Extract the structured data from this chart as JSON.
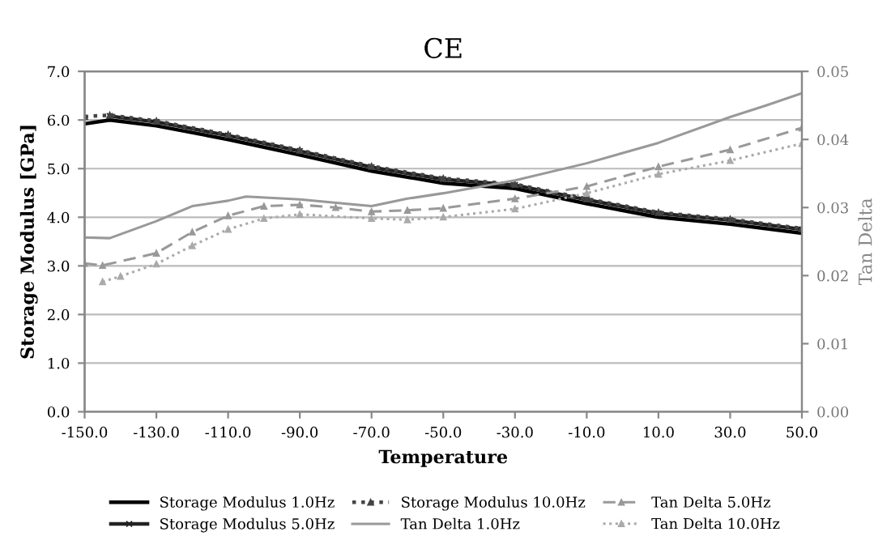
{
  "chart_data": {
    "type": "line",
    "title": "CE",
    "xlabel": "Temperature",
    "ylabel": "Storage Modulus [GPa]",
    "y2label": "Tan Delta",
    "xlim": [
      -150,
      50
    ],
    "xticks": [
      {
        "value": -150,
        "label": "-150.0"
      },
      {
        "value": -130,
        "label": "-130.0"
      },
      {
        "value": -110,
        "label": "-110.0"
      },
      {
        "value": -90,
        "label": "-90.0"
      },
      {
        "value": -70,
        "label": "-70.0"
      },
      {
        "value": -50,
        "label": "-50.0"
      },
      {
        "value": -30,
        "label": "-30.0"
      },
      {
        "value": -10,
        "label": "-10.0"
      },
      {
        "value": 10,
        "label": "10.0"
      },
      {
        "value": 30,
        "label": "30.0"
      },
      {
        "value": 50,
        "label": "50.0"
      }
    ],
    "ylim": [
      0,
      7
    ],
    "yticks": [
      {
        "value": 0,
        "label": "0.0"
      },
      {
        "value": 1,
        "label": "1.0"
      },
      {
        "value": 2,
        "label": "2.0"
      },
      {
        "value": 3,
        "label": "3.0"
      },
      {
        "value": 4,
        "label": "4.0"
      },
      {
        "value": 5,
        "label": "5.0"
      },
      {
        "value": 6,
        "label": "6.0"
      },
      {
        "value": 7,
        "label": "7.0"
      }
    ],
    "y2lim": [
      0,
      0.05
    ],
    "y2ticks": [
      {
        "value": 0,
        "label": "0.00"
      },
      {
        "value": 0.01,
        "label": "0.01"
      },
      {
        "value": 0.02,
        "label": "0.02"
      },
      {
        "value": 0.03,
        "label": "0.03"
      },
      {
        "value": 0.04,
        "label": "0.04"
      },
      {
        "value": 0.05,
        "label": "0.05"
      }
    ],
    "grid": "y",
    "legend": "bottom",
    "series": [
      {
        "name": "Storage Modulus 1.0Hz",
        "color": "#000000",
        "line_style": "solid",
        "marker": "none",
        "x": [
          -150,
          -143,
          -130,
          -110,
          -90,
          -70,
          -50,
          -30,
          -10,
          10,
          30,
          50
        ],
        "values": [
          5.92,
          6.0,
          5.88,
          5.6,
          5.28,
          4.95,
          4.7,
          4.59,
          4.28,
          4.0,
          3.86,
          3.67
        ]
      },
      {
        "name": "Storage Modulus 5.0Hz",
        "color": "#222222",
        "line_style": "solid",
        "marker": "cross",
        "x": [
          -143,
          -130,
          -110,
          -90,
          -70,
          -50,
          -30,
          -10,
          10,
          30,
          50
        ],
        "values": [
          6.08,
          5.96,
          5.68,
          5.36,
          5.03,
          4.78,
          4.66,
          4.36,
          4.08,
          3.94,
          3.75
        ]
      },
      {
        "name": "Storage Modulus 10.0Hz",
        "color": "#444444",
        "line_style": "dotted",
        "marker": "triangle",
        "x": [
          -150,
          -143,
          -130,
          -110,
          -90,
          -70,
          -50,
          -30,
          -10,
          10,
          30,
          50
        ],
        "values": [
          6.07,
          6.1,
          5.98,
          5.7,
          5.38,
          5.05,
          4.8,
          4.68,
          4.38,
          4.1,
          3.96,
          3.77
        ]
      },
      {
        "name": "Tan Delta 1.0Hz",
        "color": "#999999",
        "line_style": "solid",
        "marker": "none",
        "axis": "y2",
        "x": [
          -150,
          -143,
          -130,
          -120,
          -110,
          -105,
          -90,
          -70,
          -60,
          -50,
          -30,
          -10,
          10,
          30,
          40,
          50
        ],
        "values": [
          0.0256,
          0.0255,
          0.028,
          0.0302,
          0.031,
          0.0316,
          0.0312,
          0.0302,
          0.0313,
          0.0321,
          0.034,
          0.0365,
          0.0395,
          0.0433,
          0.045,
          0.0468
        ]
      },
      {
        "name": "Tan Delta 5.0Hz",
        "color": "#999999",
        "line_style": "dashed",
        "marker": "triangle",
        "axis": "y2",
        "x": [
          -150,
          -145,
          -130,
          -120,
          -110,
          -100,
          -90,
          -80,
          -70,
          -60,
          -50,
          -30,
          -10,
          10,
          30,
          50
        ],
        "values": [
          0.0218,
          0.0215,
          0.0233,
          0.0264,
          0.0288,
          0.0302,
          0.0304,
          0.03,
          0.0294,
          0.0296,
          0.0299,
          0.0313,
          0.0331,
          0.036,
          0.0385,
          0.0417
        ]
      },
      {
        "name": "Tan Delta 10.0Hz",
        "color": "#aaaaaa",
        "line_style": "dotted",
        "marker": "triangle",
        "axis": "y2",
        "x": [
          -145,
          -140,
          -130,
          -120,
          -110,
          -100,
          -90,
          -70,
          -60,
          -50,
          -30,
          -10,
          10,
          30,
          50
        ],
        "values": [
          0.0191,
          0.0199,
          0.0217,
          0.0244,
          0.0268,
          0.0284,
          0.029,
          0.0284,
          0.0282,
          0.0286,
          0.0298,
          0.0321,
          0.0349,
          0.0369,
          0.0394
        ]
      }
    ]
  }
}
